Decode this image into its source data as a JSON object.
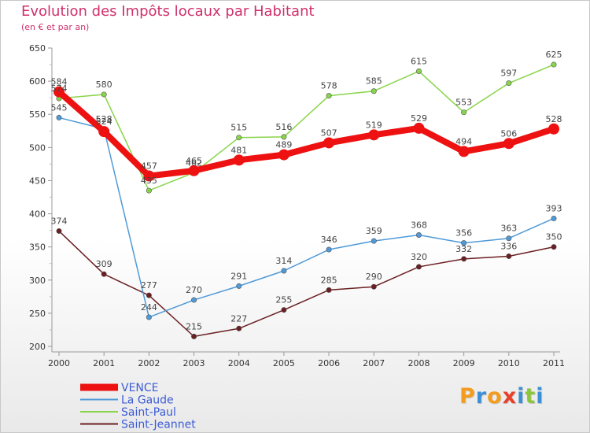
{
  "header": {
    "title": "Evolution des Impôts locaux par Habitant",
    "subtitle": "(en € et par an)"
  },
  "chart_data": {
    "type": "line",
    "title": "Evolution des Impôts locaux par Habitant",
    "subtitle": "(en € et par an)",
    "xlabel": "",
    "ylabel": "",
    "x": [
      "2000",
      "2001",
      "2002",
      "2003",
      "2004",
      "2005",
      "2006",
      "2007",
      "2008",
      "2009",
      "2010",
      "2011"
    ],
    "ylim": [
      200,
      650
    ],
    "yticks": [
      200,
      250,
      300,
      350,
      400,
      450,
      500,
      550,
      600,
      650
    ],
    "grid": false,
    "legend_position": "bottom-left",
    "series": [
      {
        "name": "VENCE",
        "color": "#ee1111",
        "values": [
          584,
          524,
          457,
          465,
          481,
          489,
          507,
          519,
          529,
          494,
          506,
          528
        ]
      },
      {
        "name": "La Gaude",
        "color": "#4f9ad8",
        "values": [
          545,
          528,
          244,
          270,
          291,
          314,
          346,
          359,
          368,
          356,
          363,
          393
        ]
      },
      {
        "name": "Saint-Paul",
        "color": "#88d44a",
        "values": [
          574,
          580,
          435,
          462,
          515,
          516,
          578,
          585,
          615,
          553,
          597,
          625
        ]
      },
      {
        "name": "Saint-Jeannet",
        "color": "#6b1e22",
        "values": [
          374,
          309,
          277,
          215,
          227,
          255,
          285,
          290,
          320,
          332,
          336,
          350
        ]
      }
    ]
  },
  "branding": {
    "logo_letters": [
      "P",
      "r",
      "o",
      "x",
      "i",
      "t",
      "i"
    ],
    "logo_colors": [
      "#f39c1e",
      "#3b8fd6",
      "#f39c1e",
      "#e8402a",
      "#3b8fd6",
      "#8cc63f",
      "#3b8fd6"
    ]
  }
}
